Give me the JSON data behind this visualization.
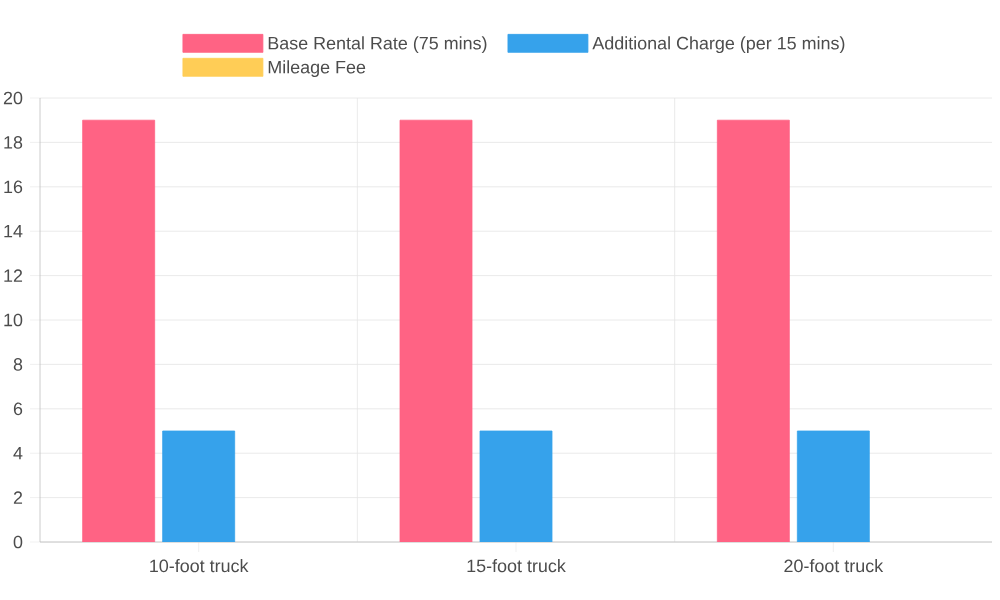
{
  "chart_data": {
    "type": "bar",
    "categories": [
      "10-foot truck",
      "15-foot truck",
      "20-foot truck"
    ],
    "series": [
      {
        "name": "Base Rental Rate (75 mins)",
        "color": "#ff6384",
        "values": [
          19,
          19,
          19
        ]
      },
      {
        "name": "Additional Charge (per 15 mins)",
        "color": "#36a2eb",
        "values": [
          5,
          5,
          5
        ]
      },
      {
        "name": "Mileage Fee",
        "color": "#ffcd56",
        "values": [
          null,
          null,
          null
        ]
      }
    ],
    "ylim": [
      0,
      20
    ],
    "yticks": [
      0,
      2,
      4,
      6,
      8,
      10,
      12,
      14,
      16,
      18,
      20
    ],
    "grid": true,
    "legend": "top"
  }
}
